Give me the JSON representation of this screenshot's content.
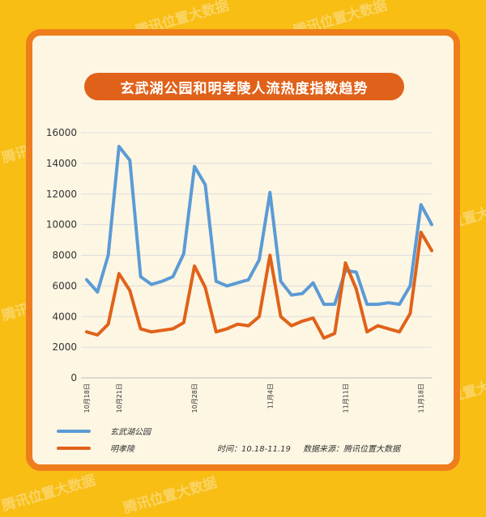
{
  "watermark": "腾讯位置大数据",
  "title": "玄武湖公园和明孝陵人流热度指数趋势",
  "legend": [
    {
      "label": "玄武湖公园"
    },
    {
      "label": "明孝陵"
    }
  ],
  "source": {
    "time": "时间：10.18-11.19",
    "origin": "数据来源：腾讯位置大数据"
  },
  "colors": {
    "background": "#F8BE14",
    "frame": "#EF7D1C",
    "card": "#FDF6E3",
    "title_pill": "#E0621A",
    "series_1": "#5B9BD5",
    "series_2": "#E0621A"
  },
  "chart_data": {
    "type": "line",
    "title": "玄武湖公园和明孝陵人流热度指数趋势",
    "xlabel": "",
    "ylabel": "",
    "ylim": [
      0,
      16000
    ],
    "yticks": [
      0,
      2000,
      4000,
      6000,
      8000,
      10000,
      12000,
      14000,
      16000
    ],
    "grid": true,
    "legend_position": "bottom-left",
    "x_tick_labels": [
      {
        "index": 0,
        "label": "10月18日"
      },
      {
        "index": 3,
        "label": "10月21日"
      },
      {
        "index": 10,
        "label": "10月28日"
      },
      {
        "index": 17,
        "label": "11月4日"
      },
      {
        "index": 24,
        "label": "11月11日"
      },
      {
        "index": 31,
        "label": "11月18日"
      }
    ],
    "categories": [
      "10月18日",
      "10月19日",
      "10月20日",
      "10月21日",
      "10月22日",
      "10月23日",
      "10月24日",
      "10月25日",
      "10月26日",
      "10月27日",
      "10月28日",
      "10月29日",
      "10月30日",
      "10月31日",
      "11月1日",
      "11月2日",
      "11月3日",
      "11月4日",
      "11月5日",
      "11月6日",
      "11月7日",
      "11月8日",
      "11月9日",
      "11月10日",
      "11月11日",
      "11月12日",
      "11月13日",
      "11月14日",
      "11月15日",
      "11月16日",
      "11月17日",
      "11月18日",
      "11月19日"
    ],
    "series": [
      {
        "name": "玄武湖公园",
        "color": "#5B9BD5",
        "values": [
          6400,
          5600,
          8000,
          15100,
          14200,
          6600,
          6100,
          6300,
          6600,
          8100,
          13800,
          12600,
          6300,
          6000,
          6200,
          6400,
          7700,
          12100,
          6300,
          5400,
          5500,
          6200,
          4800,
          4800,
          7000,
          6900,
          4800,
          4800,
          4900,
          4800,
          6000,
          11300,
          10000
        ]
      },
      {
        "name": "明孝陵",
        "color": "#E0621A",
        "values": [
          3000,
          2800,
          3500,
          6800,
          5700,
          3200,
          3000,
          3100,
          3200,
          3600,
          7300,
          5900,
          3000,
          3200,
          3500,
          3400,
          4000,
          8000,
          4000,
          3400,
          3700,
          3900,
          2600,
          2900,
          7500,
          5800,
          3000,
          3400,
          3200,
          3000,
          4200,
          9500,
          8300
        ]
      }
    ]
  }
}
